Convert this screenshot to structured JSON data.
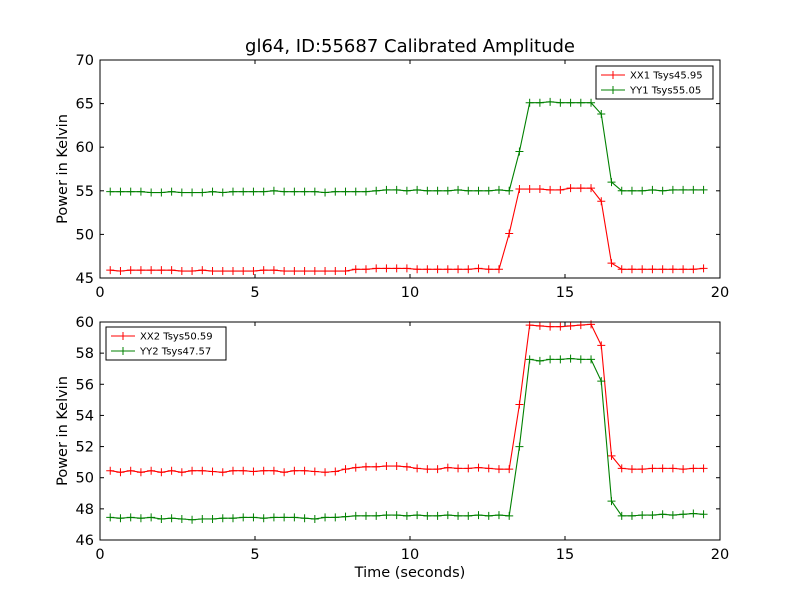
{
  "chart_data": [
    {
      "type": "line",
      "title": "gl64, ID:55687 Calibrated Amplitude",
      "xlabel": "",
      "ylabel": "Power in Kelvin",
      "xlim": [
        0,
        20
      ],
      "ylim": [
        45,
        70
      ],
      "xticks": [
        0,
        5,
        10,
        15,
        20
      ],
      "yticks": [
        45,
        50,
        55,
        60,
        65,
        70
      ],
      "legend_position": "top-right",
      "grid": false,
      "series": [
        {
          "name": "XX1 Tsys45.95",
          "color": "#ff0000",
          "x": [
            0.33,
            0.66,
            0.99,
            1.32,
            1.65,
            1.98,
            2.31,
            2.64,
            2.97,
            3.3,
            3.63,
            3.96,
            4.29,
            4.62,
            4.95,
            5.28,
            5.61,
            5.94,
            6.27,
            6.6,
            6.93,
            7.26,
            7.59,
            7.92,
            8.25,
            8.58,
            8.91,
            9.24,
            9.57,
            9.9,
            10.23,
            10.56,
            10.89,
            11.22,
            11.55,
            11.88,
            12.21,
            12.54,
            12.87,
            13.2,
            13.53,
            13.86,
            14.19,
            14.52,
            14.85,
            15.18,
            15.51,
            15.84,
            16.17,
            16.5,
            16.83,
            17.16,
            17.49,
            17.82,
            18.15,
            18.48,
            18.81,
            19.14,
            19.47
          ],
          "y": [
            45.9,
            45.8,
            45.9,
            45.9,
            45.9,
            45.9,
            45.9,
            45.8,
            45.8,
            45.9,
            45.8,
            45.8,
            45.8,
            45.8,
            45.8,
            45.9,
            45.9,
            45.8,
            45.8,
            45.8,
            45.8,
            45.8,
            45.8,
            45.8,
            46.0,
            46.0,
            46.1,
            46.1,
            46.1,
            46.1,
            46.0,
            46.0,
            46.0,
            46.0,
            46.0,
            46.0,
            46.1,
            46.0,
            46.0,
            50.1,
            55.2,
            55.2,
            55.2,
            55.1,
            55.1,
            55.3,
            55.3,
            55.3,
            53.8,
            46.7,
            46.0,
            46.0,
            46.0,
            46.0,
            46.0,
            46.0,
            46.0,
            46.0,
            46.1
          ]
        },
        {
          "name": "YY1 Tsys55.05",
          "color": "#008000",
          "x": [
            0.33,
            0.66,
            0.99,
            1.32,
            1.65,
            1.98,
            2.31,
            2.64,
            2.97,
            3.3,
            3.63,
            3.96,
            4.29,
            4.62,
            4.95,
            5.28,
            5.61,
            5.94,
            6.27,
            6.6,
            6.93,
            7.26,
            7.59,
            7.92,
            8.25,
            8.58,
            8.91,
            9.24,
            9.57,
            9.9,
            10.23,
            10.56,
            10.89,
            11.22,
            11.55,
            11.88,
            12.21,
            12.54,
            12.87,
            13.2,
            13.53,
            13.86,
            14.19,
            14.52,
            14.85,
            15.18,
            15.51,
            15.84,
            16.17,
            16.5,
            16.83,
            17.16,
            17.49,
            17.82,
            18.15,
            18.48,
            18.81,
            19.14,
            19.47
          ],
          "y": [
            54.9,
            54.9,
            54.9,
            54.9,
            54.8,
            54.8,
            54.9,
            54.8,
            54.8,
            54.8,
            54.9,
            54.8,
            54.9,
            54.9,
            54.9,
            54.9,
            55.0,
            54.9,
            54.9,
            54.9,
            54.9,
            54.8,
            54.9,
            54.9,
            54.9,
            54.9,
            55.0,
            55.1,
            55.1,
            55.0,
            55.1,
            55.0,
            55.0,
            55.0,
            55.1,
            55.0,
            55.0,
            55.0,
            55.1,
            55.0,
            59.5,
            65.1,
            65.1,
            65.2,
            65.1,
            65.1,
            65.1,
            65.1,
            63.8,
            56.0,
            55.0,
            55.0,
            55.0,
            55.1,
            55.0,
            55.1,
            55.1,
            55.1,
            55.1
          ]
        }
      ]
    },
    {
      "type": "line",
      "title": "",
      "xlabel": "Time (seconds)",
      "ylabel": "Power in Kelvin",
      "xlim": [
        0,
        20
      ],
      "ylim": [
        46,
        60
      ],
      "xticks": [
        0,
        5,
        10,
        15,
        20
      ],
      "yticks": [
        46,
        48,
        50,
        52,
        54,
        56,
        58,
        60
      ],
      "legend_position": "top-left",
      "grid": false,
      "series": [
        {
          "name": "XX2 Tsys50.59",
          "color": "#ff0000",
          "x": [
            0.33,
            0.66,
            0.99,
            1.32,
            1.65,
            1.98,
            2.31,
            2.64,
            2.97,
            3.3,
            3.63,
            3.96,
            4.29,
            4.62,
            4.95,
            5.28,
            5.61,
            5.94,
            6.27,
            6.6,
            6.93,
            7.26,
            7.59,
            7.92,
            8.25,
            8.58,
            8.91,
            9.24,
            9.57,
            9.9,
            10.23,
            10.56,
            10.89,
            11.22,
            11.55,
            11.88,
            12.21,
            12.54,
            12.87,
            13.2,
            13.53,
            13.86,
            14.19,
            14.52,
            14.85,
            15.18,
            15.51,
            15.84,
            16.17,
            16.5,
            16.83,
            17.16,
            17.49,
            17.82,
            18.15,
            18.48,
            18.81,
            19.14,
            19.47
          ],
          "y": [
            50.45,
            50.35,
            50.45,
            50.35,
            50.45,
            50.35,
            50.45,
            50.35,
            50.45,
            50.45,
            50.4,
            50.35,
            50.45,
            50.45,
            50.4,
            50.45,
            50.45,
            50.35,
            50.45,
            50.45,
            50.4,
            50.35,
            50.4,
            50.55,
            50.65,
            50.7,
            50.7,
            50.75,
            50.75,
            50.7,
            50.6,
            50.55,
            50.55,
            50.65,
            50.6,
            50.6,
            50.65,
            50.6,
            50.55,
            50.55,
            54.7,
            59.8,
            59.75,
            59.7,
            59.7,
            59.75,
            59.8,
            59.85,
            58.5,
            51.4,
            50.6,
            50.55,
            50.55,
            50.6,
            50.6,
            50.6,
            50.55,
            50.6,
            50.6
          ]
        },
        {
          "name": "YY2 Tsys47.57",
          "color": "#008000",
          "x": [
            0.33,
            0.66,
            0.99,
            1.32,
            1.65,
            1.98,
            2.31,
            2.64,
            2.97,
            3.3,
            3.63,
            3.96,
            4.29,
            4.62,
            4.95,
            5.28,
            5.61,
            5.94,
            6.27,
            6.6,
            6.93,
            7.26,
            7.59,
            7.92,
            8.25,
            8.58,
            8.91,
            9.24,
            9.57,
            9.9,
            10.23,
            10.56,
            10.89,
            11.22,
            11.55,
            11.88,
            12.21,
            12.54,
            12.87,
            13.2,
            13.53,
            13.86,
            14.19,
            14.52,
            14.85,
            15.18,
            15.51,
            15.84,
            16.17,
            16.5,
            16.83,
            17.16,
            17.49,
            17.82,
            18.15,
            18.48,
            18.81,
            19.14,
            19.47
          ],
          "y": [
            47.45,
            47.4,
            47.45,
            47.4,
            47.45,
            47.35,
            47.4,
            47.35,
            47.3,
            47.35,
            47.35,
            47.4,
            47.4,
            47.45,
            47.45,
            47.4,
            47.45,
            47.45,
            47.45,
            47.4,
            47.35,
            47.45,
            47.45,
            47.5,
            47.55,
            47.55,
            47.55,
            47.6,
            47.6,
            47.55,
            47.6,
            47.55,
            47.55,
            47.6,
            47.55,
            47.55,
            47.6,
            47.55,
            47.6,
            47.55,
            52.0,
            57.6,
            57.5,
            57.6,
            57.6,
            57.65,
            57.6,
            57.6,
            56.2,
            48.5,
            47.55,
            47.55,
            47.6,
            47.6,
            47.65,
            47.6,
            47.65,
            47.7,
            47.65
          ]
        }
      ]
    }
  ]
}
